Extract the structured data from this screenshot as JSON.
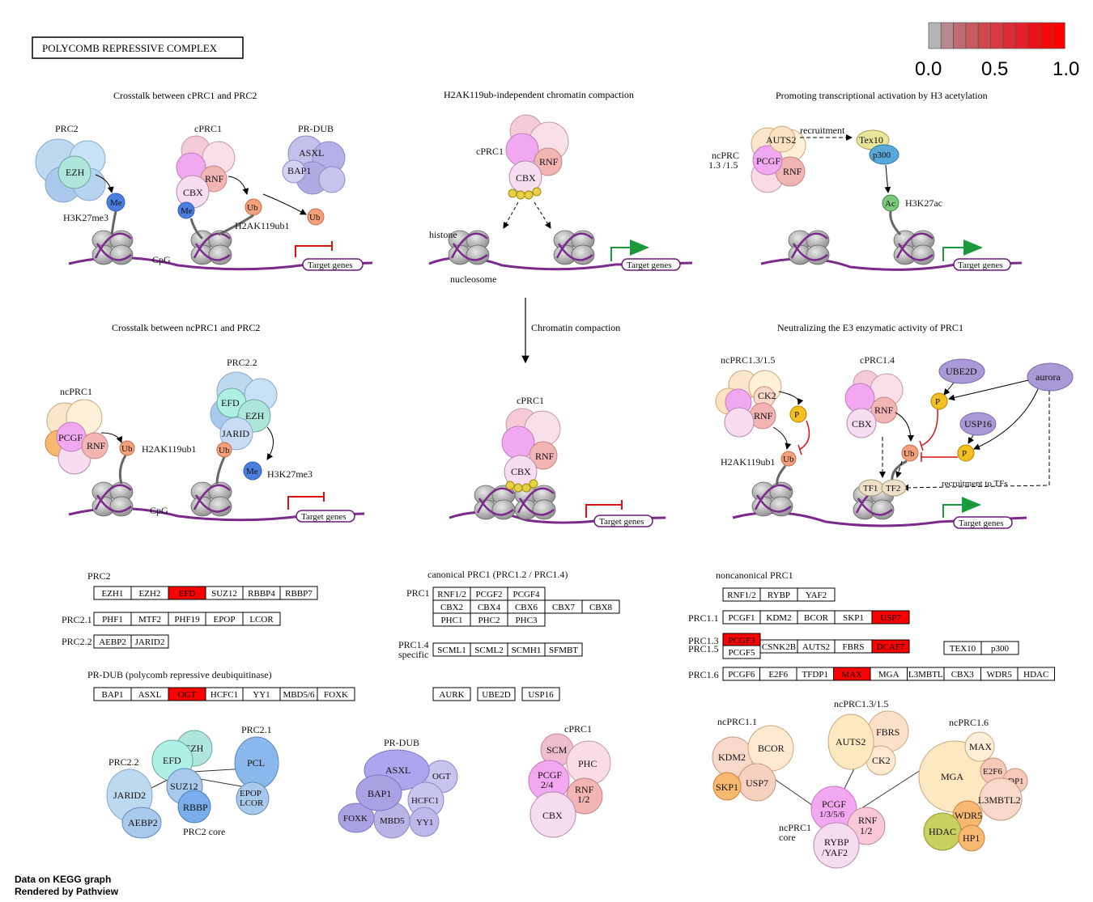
{
  "title": "POLYCOMB REPRESSIVE  COMPLEX",
  "legend": {
    "ticks": [
      "0.0",
      "0.5",
      "1.0"
    ],
    "colors": [
      "#b3b3b3",
      "#b88a8d",
      "#c06a71",
      "#c95a62",
      "#d0474f",
      "#d63a43",
      "#dc2b35",
      "#e41f29",
      "#ec1219",
      "#f50808",
      "#ff0000"
    ]
  },
  "panels": {
    "p1": {
      "title": "Crosstalk between cPRC1 and PRC2",
      "prc2": "PRC2",
      "ezh": "EZH",
      "me": "Me",
      "h3k27me3": "H3K27me3",
      "cprc1": "cPRC1",
      "cbx": "CBX",
      "rnf": "RNF",
      "ub": "Ub",
      "me2": "Me",
      "prdub": "PR-DUB",
      "asxl": "ASXL",
      "bap1": "BAP1",
      "ub2": "Ub",
      "h2ak119ub1": "H2AK119ub1",
      "cpg": "CpG",
      "target": "Target genes"
    },
    "p2": {
      "title": "H2AK119ub-independent chromatin compaction",
      "cprc1": "cPRC1",
      "cbx": "CBX",
      "rnf": "RNF",
      "histone": "histone",
      "nucleosome": "nucleosome",
      "target": "Target genes"
    },
    "p3": {
      "title": "Promoting transcriptional activation by H3 acetylation",
      "ncprc": "ncPRC\n1.3 /1.5",
      "ncprc_l1": "ncPRC",
      "ncprc_l2": "1.3 /1.5",
      "auts2": "AUTS2",
      "pcgf": "PCGF",
      "rnf": "RNF",
      "recruitment": "recruitment",
      "tex10": "Tex10",
      "p300": "p300",
      "ac": "Ac",
      "h3k27ac": "H3K27ac",
      "target": "Target genes"
    },
    "p4": {
      "title": "Crosstalk between ncPRC1 and PRC2",
      "ncprc1": "ncPRC1",
      "pcgf": "PCGF",
      "rnf": "RNF",
      "ub": "Ub",
      "h2ak119ub1": "H2AK119ub1",
      "prc22": "PRC2.2",
      "efd": "EFD",
      "ezh": "EZH",
      "jarid": "JARID",
      "ub2": "Ub",
      "me": "Me",
      "h3k27me3": "H3K27me3",
      "cpg": "CpG",
      "target": "Target genes"
    },
    "p5": {
      "arrow_label": "Chromatin compaction",
      "cprc1": "cPRC1",
      "cbx": "CBX",
      "rnf": "RNF",
      "target": "Target genes"
    },
    "p6": {
      "title": "Neutralizing the E3 enzymatic activity of PRC1",
      "ncprc": "ncPRC1.3/1.5",
      "ck2": "CK2",
      "rnf": "RNF",
      "p": "P",
      "ub": "Ub",
      "h2ak119ub1": "H2AK119ub1",
      "cprc14": "cPRC1.4",
      "cbx": "CBX",
      "rnf2": "RNF",
      "ub2": "Ub",
      "ube2d": "UBE2D",
      "aurora": "aurora",
      "usp16": "USP16",
      "p2": "P",
      "p3": "P",
      "tf1": "TF1",
      "tf2": "TF2",
      "recruit": "recruitment to TFs",
      "target": "Target genes"
    }
  },
  "gene_sections": {
    "prc2": {
      "label": "PRC2",
      "row1": [
        "EZH1",
        "EZH2",
        "EFD",
        "SUZ12",
        "RBBP4",
        "RBBP7"
      ],
      "row2_label": "PRC2.1",
      "row2": [
        "PHF1",
        "MTF2",
        "PHF19",
        "EPOP",
        "LCOR"
      ],
      "row3_label": "PRC2.2",
      "row3": [
        "AEBP2",
        "JARID2"
      ]
    },
    "prdub": {
      "label": "PR-DUB (polycomb repressive deubiquitinase)",
      "row1": [
        "BAP1",
        "ASXL",
        "OGT",
        "HCFC1",
        "YY1",
        "MBD5/6",
        "FOXK"
      ]
    },
    "cprc1": {
      "label": "canonical PRC1 (PRC1.2 / PRC1.4)",
      "prc1_label": "PRC1",
      "row1": [
        "RNF1/2",
        "PCGF2",
        "PCGF4"
      ],
      "row2": [
        "CBX2",
        "CBX4",
        "CBX6",
        "CBX7",
        "CBX8"
      ],
      "row3": [
        "PHC1",
        "PHC2",
        "PHC3"
      ],
      "prc14_l1": "PRC1.4",
      "prc14_l2": "specific",
      "row4": [
        "SCML1",
        "SCML2",
        "SCMH1",
        "SFMBT"
      ],
      "row5": [
        "AURK",
        "UBE2D",
        "USP16"
      ]
    },
    "ncprc1": {
      "label": "noncanonical PRC1",
      "row0": [
        "RNF1/2",
        "RYBP",
        "YAF2"
      ],
      "prc11_label": "PRC1.1",
      "row1": [
        "PCGF1",
        "KDM2",
        "BCOR",
        "SKP1",
        "USP7"
      ],
      "prc13_label": "PRC1.3",
      "prc15_label": "PRC1.5",
      "pcgf3": "PCGF3",
      "pcgf5": "PCGF5",
      "row2": [
        "CSNK2B",
        "AUTS2",
        "FBRS",
        "DCAF7"
      ],
      "row2b": [
        "TEX10",
        "p300"
      ],
      "prc16_label": "PRC1.6",
      "row3": [
        "PCGF6",
        "E2F6",
        "TFDP1",
        "MAX",
        "MGA",
        "L3MBTL",
        "CBX3",
        "WDR5",
        "HDAC"
      ]
    }
  },
  "bottom_complexes": {
    "prc2": {
      "prc22": "PRC2.2",
      "prc21": "PRC2.1",
      "efd": "EFD",
      "ezh": "EZH",
      "pcl": "PCL",
      "suz12": "SUZ12",
      "jarid2": "JARID2",
      "rbbp": "RBBP",
      "epop": "EPOP",
      "lcor": "LCOR",
      "aebp2": "AEBP2",
      "core": "PRC2 core"
    },
    "prdub": {
      "label": "PR-DUB",
      "asxl": "ASXL",
      "ogt": "OGT",
      "bap1": "BAP1",
      "hcfc1": "HCFC1",
      "foxk": "FOXK",
      "mbd5": "MBD5",
      "yy1": "YY1"
    },
    "cprc1": {
      "label": "cPRC1",
      "scm": "SCM",
      "phc": "PHC",
      "pcgf": "PCGF",
      "pcgf_num": "2/4",
      "rnf": "RNF",
      "rnf_num": "1/2",
      "cbx": "CBX"
    },
    "ncprc1": {
      "l11": "ncPRC1.1",
      "l135": "ncPRC1.3/1.5",
      "l16": "ncPRC1.6",
      "kdm2": "KDM2",
      "bcor": "BCOR",
      "skp1": "SKP1",
      "usp7": "USP7",
      "auts2": "AUTS2",
      "fbrs": "FBRS",
      "ck2": "CK2",
      "mga": "MGA",
      "max": "MAX",
      "e2f6": "E2F6",
      "dp1": "DP1",
      "l3mbtl2": "L3MBTL2",
      "wdr5": "WDR5",
      "hdac": "HDAC",
      "hp1": "HP1",
      "pcgf": "PCGF",
      "pcgf_num": "1/3/5/6",
      "rnf": "RNF",
      "rnf_num": "1/2",
      "rybp": "RYBP",
      "yaf2": "/YAF2",
      "core_l1": "ncPRC1",
      "core_l2": "core"
    }
  },
  "highlighted_genes": [
    "EFD",
    "OGT",
    "USP7",
    "PCGF3",
    "DCAF7",
    "MAX"
  ],
  "footer": {
    "line1": "Data on KEGG graph",
    "line2": "Rendered by Pathview"
  }
}
